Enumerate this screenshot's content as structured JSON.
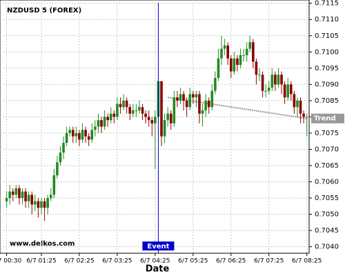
{
  "chart_data": {
    "type": "candlestick",
    "title": "NZDUSD 5 (FOREX)",
    "watermark": "www.delkos.com",
    "x_label": "Date",
    "categories": [
      "6/7 00:30",
      null,
      null,
      null,
      null,
      null,
      null,
      null,
      null,
      null,
      null,
      "6/7 01:25",
      null,
      null,
      null,
      null,
      null,
      null,
      null,
      null,
      null,
      null,
      null,
      "6/7 02:25",
      null,
      null,
      null,
      null,
      null,
      null,
      null,
      null,
      null,
      null,
      null,
      "6/7 03:25",
      null,
      null,
      null,
      null,
      null,
      null,
      null,
      null,
      null,
      null,
      null,
      "6/7 04:25",
      null,
      null,
      null,
      null,
      null,
      null,
      null,
      null,
      null,
      null,
      null,
      "6/7 05:25",
      null,
      null,
      null,
      null,
      null,
      null,
      null,
      null,
      null,
      null,
      null,
      "6/7 06:25",
      null,
      null,
      null,
      null,
      null,
      null,
      null,
      null,
      null,
      null,
      null,
      "6/7 07:25",
      null,
      null,
      null,
      null,
      null,
      null,
      null,
      null,
      null,
      null,
      null,
      "6/7 08:25"
    ],
    "open": [
      0.7054,
      0.7055,
      0.7057,
      0.7056,
      0.7058,
      0.7055,
      0.7057,
      0.7054,
      0.7056,
      0.7053,
      0.7054,
      0.7052,
      0.7054,
      0.7052,
      0.7055,
      0.7056,
      0.7062,
      0.7066,
      0.7069,
      0.7072,
      0.7075,
      0.7076,
      0.7074,
      0.7075,
      0.7073,
      0.7076,
      0.7074,
      0.7073,
      0.7076,
      0.7077,
      0.7079,
      0.7077,
      0.708,
      0.7079,
      0.7081,
      0.708,
      0.7084,
      0.7083,
      0.7085,
      0.7083,
      0.7081,
      0.7082,
      0.7082,
      0.7083,
      0.7081,
      0.708,
      0.7079,
      0.7078,
      0.708,
      0.7091,
      0.7074,
      0.7079,
      0.7081,
      0.7078,
      0.7086,
      0.7085,
      0.7087,
      0.7085,
      0.7083,
      0.7087,
      0.7086,
      0.7087,
      0.7081,
      0.7082,
      0.7085,
      0.7083,
      0.7088,
      0.7092,
      0.7098,
      0.7101,
      0.7102,
      0.7098,
      0.7094,
      0.7098,
      0.7096,
      0.7099,
      0.7099,
      0.7101,
      0.7103,
      0.7097,
      0.7093,
      0.7093,
      0.7088,
      0.7088,
      0.7089,
      0.7093,
      0.709,
      0.7093,
      0.709,
      0.7086,
      0.709,
      0.7087,
      0.7083,
      0.7085,
      0.7081,
      0.708
    ],
    "high": [
      0.7057,
      0.7059,
      0.7058,
      0.7059,
      0.7059,
      0.7058,
      0.7058,
      0.7057,
      0.7057,
      0.7056,
      0.7055,
      0.7055,
      0.7055,
      0.7056,
      0.7058,
      0.7064,
      0.7068,
      0.7071,
      0.7074,
      0.7077,
      0.7077,
      0.7077,
      0.7077,
      0.7076,
      0.7078,
      0.7077,
      0.7075,
      0.7078,
      0.7079,
      0.7081,
      0.708,
      0.7082,
      0.7081,
      0.7083,
      0.7082,
      0.7086,
      0.7086,
      0.7087,
      0.7086,
      0.7084,
      0.7084,
      0.7084,
      0.7085,
      0.7084,
      0.7082,
      0.7082,
      0.708,
      0.7082,
      0.7092,
      0.7091,
      0.7081,
      0.7083,
      0.7082,
      0.7088,
      0.7088,
      0.7089,
      0.7088,
      0.7086,
      0.7089,
      0.7088,
      0.7088,
      0.7088,
      0.7084,
      0.7087,
      0.7086,
      0.709,
      0.7094,
      0.7101,
      0.7105,
      0.7104,
      0.7103,
      0.7099,
      0.71,
      0.7099,
      0.7101,
      0.7101,
      0.7103,
      0.7105,
      0.7104,
      0.7098,
      0.7095,
      0.7094,
      0.709,
      0.7091,
      0.7095,
      0.7094,
      0.7095,
      0.7094,
      0.7091,
      0.7092,
      0.7091,
      0.7088,
      0.7086,
      0.7086,
      0.7082,
      0.7081
    ],
    "low": [
      0.7052,
      0.7053,
      0.7054,
      0.7055,
      0.7053,
      0.7053,
      0.7052,
      0.7052,
      0.705,
      0.7051,
      0.7049,
      0.705,
      0.7048,
      0.705,
      0.7054,
      0.7055,
      0.7061,
      0.7065,
      0.7067,
      0.7071,
      0.7074,
      0.7072,
      0.7072,
      0.7071,
      0.7072,
      0.7072,
      0.7071,
      0.7072,
      0.7074,
      0.7075,
      0.7075,
      0.7076,
      0.7077,
      0.7078,
      0.7078,
      0.7079,
      0.7081,
      0.7082,
      0.7081,
      0.7079,
      0.708,
      0.708,
      0.7081,
      0.7079,
      0.7078,
      0.7077,
      0.7074,
      0.7064,
      0.7078,
      0.7071,
      0.7072,
      0.7077,
      0.7076,
      0.7077,
      0.7083,
      0.7084,
      0.7082,
      0.708,
      0.7082,
      0.7084,
      0.7083,
      0.7078,
      0.7077,
      0.708,
      0.7081,
      0.7082,
      0.7087,
      0.7091,
      0.7096,
      0.7099,
      0.7096,
      0.7092,
      0.7093,
      0.7094,
      0.7095,
      0.7097,
      0.7097,
      0.71,
      0.7095,
      0.709,
      0.7091,
      0.7086,
      0.7086,
      0.7087,
      0.7088,
      0.7088,
      0.7089,
      0.7087,
      0.7084,
      0.7085,
      0.7085,
      0.7081,
      0.708,
      0.7078,
      0.7078,
      0.7074
    ],
    "close": [
      0.7055,
      0.7057,
      0.7056,
      0.7058,
      0.7055,
      0.7057,
      0.7054,
      0.7056,
      0.7053,
      0.7054,
      0.7052,
      0.7054,
      0.7052,
      0.7055,
      0.7056,
      0.7062,
      0.7066,
      0.7069,
      0.7072,
      0.7075,
      0.7076,
      0.7074,
      0.7075,
      0.7073,
      0.7076,
      0.7074,
      0.7073,
      0.7076,
      0.7077,
      0.7079,
      0.7077,
      0.708,
      0.7079,
      0.7081,
      0.708,
      0.7084,
      0.7083,
      0.7085,
      0.7083,
      0.7081,
      0.7082,
      0.7082,
      0.7083,
      0.7081,
      0.708,
      0.7079,
      0.7078,
      0.708,
      0.7091,
      0.7074,
      0.7079,
      0.7081,
      0.7078,
      0.7086,
      0.7085,
      0.7087,
      0.7085,
      0.7083,
      0.7087,
      0.7086,
      0.7087,
      0.7081,
      0.7082,
      0.7085,
      0.7083,
      0.7088,
      0.7092,
      0.7098,
      0.7101,
      0.7102,
      0.7098,
      0.7094,
      0.7098,
      0.7096,
      0.7099,
      0.7099,
      0.7101,
      0.7103,
      0.7097,
      0.7093,
      0.7093,
      0.7088,
      0.7088,
      0.7089,
      0.7093,
      0.709,
      0.7093,
      0.709,
      0.7086,
      0.709,
      0.7087,
      0.7083,
      0.7085,
      0.7081,
      0.708,
      0.708
    ],
    "up_color": "#228b22",
    "down_color": "#8b0000",
    "ylim": [
      0.7038,
      0.7116
    ],
    "yticks": [
      {
        "value": 0.704,
        "label": "0.7040"
      },
      0.7045,
      {
        "value": 0.705,
        "label": "0.7050"
      },
      0.7055,
      {
        "value": 0.706,
        "label": "0.7060"
      },
      0.7065,
      {
        "value": 0.707,
        "label": "0.7070"
      },
      0.7075,
      {
        "value": 0.708,
        "label": "0.7080"
      },
      0.7085,
      {
        "value": 0.709,
        "label": "0.7090"
      },
      0.7095,
      {
        "value": 0.71,
        "label": "0.7100"
      },
      0.7105,
      {
        "value": 0.711,
        "label": "0.7110"
      },
      0.7115
    ],
    "grid": true,
    "event": {
      "label": "Event",
      "color": "#0000cc"
    },
    "trend": {
      "label": "Trend",
      "values": [
        0.7086,
        0.70795
      ],
      "color": "#999999"
    }
  }
}
